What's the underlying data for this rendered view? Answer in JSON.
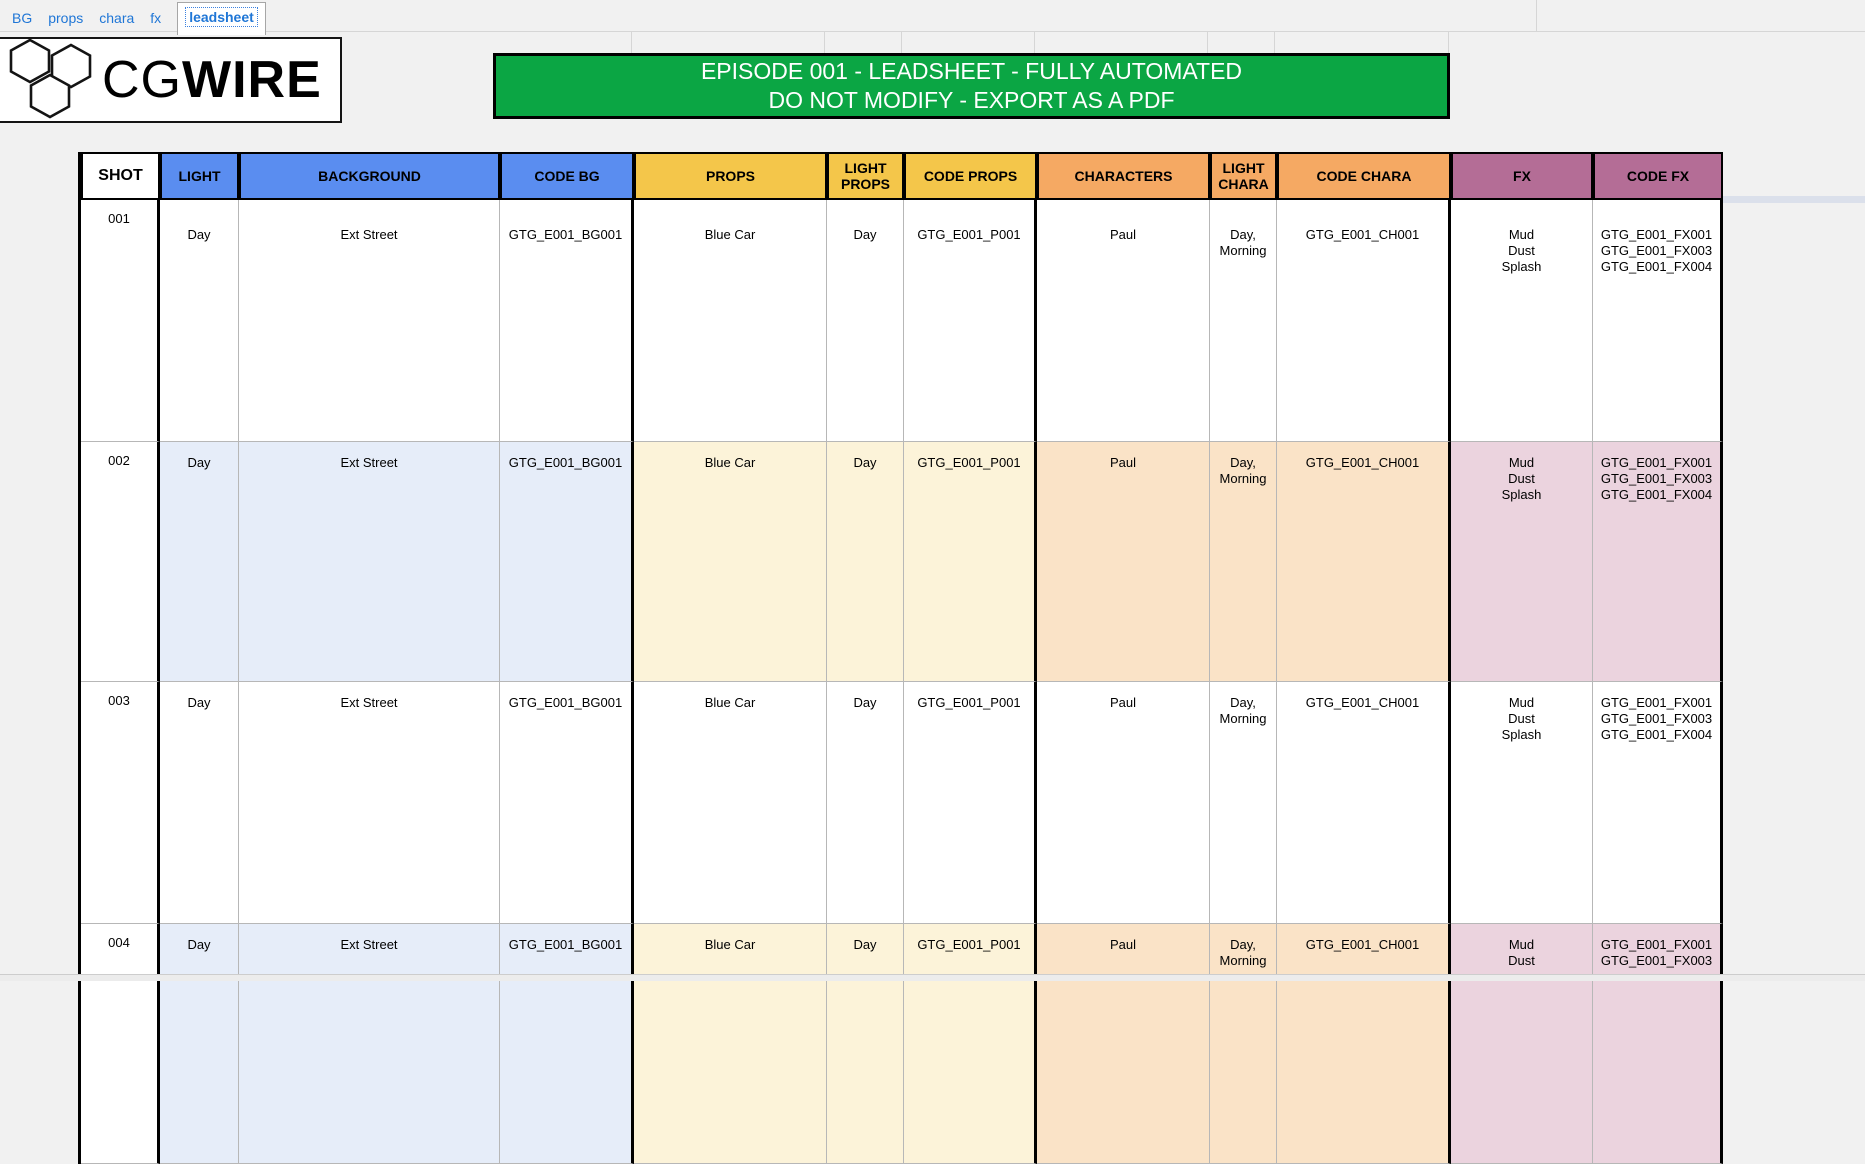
{
  "tabs": {
    "links": [
      "BG",
      "props",
      "chara",
      "fx"
    ],
    "active": "leadsheet"
  },
  "logo": {
    "cg": "CG",
    "wire": "WIRE"
  },
  "banner": {
    "line1": "EPISODE 001 - LEADSHEET - FULLY AUTOMATED",
    "line2": "DO NOT MODIFY - EXPORT AS A PDF"
  },
  "colors": {
    "link_blue": "#1f76d6",
    "banner_green": "#0ba644",
    "header": {
      "shot": "#ffffff",
      "bg": "#5a8df0",
      "props": "#f4c64a",
      "chara": "#f5a963",
      "fx": "#b46d96"
    },
    "shaded": {
      "shot": "#ffffff",
      "bg": "#e6edf9",
      "props": "#fcf3d9",
      "chara": "#fae3c7",
      "fx": "#ebd3de"
    }
  },
  "table": {
    "columns": [
      {
        "key": "shot",
        "label": "SHOT",
        "group": "shot"
      },
      {
        "key": "light",
        "label": "LIGHT",
        "group": "bg"
      },
      {
        "key": "background",
        "label": "BACKGROUND",
        "group": "bg"
      },
      {
        "key": "code_bg",
        "label": "CODE BG",
        "group": "bg"
      },
      {
        "key": "props",
        "label": "PROPS",
        "group": "props"
      },
      {
        "key": "light_props",
        "label": "LIGHT PROPS",
        "group": "props"
      },
      {
        "key": "code_props",
        "label": "CODE PROPS",
        "group": "props"
      },
      {
        "key": "characters",
        "label": "CHARACTERS",
        "group": "chara"
      },
      {
        "key": "light_chara",
        "label": "LIGHT CHARA",
        "group": "chara"
      },
      {
        "key": "code_chara",
        "label": "CODE CHARA",
        "group": "chara"
      },
      {
        "key": "fx",
        "label": "FX",
        "group": "fx"
      },
      {
        "key": "code_fx",
        "label": "CODE FX",
        "group": "fx"
      }
    ],
    "rows": [
      {
        "shot": "001",
        "light": "Day",
        "background": "Ext Street",
        "code_bg": "GTG_E001_BG001",
        "props": "Blue Car",
        "light_props": "Day",
        "code_props": "GTG_E001_P001",
        "characters": "Paul",
        "light_chara": "Day,\nMorning",
        "code_chara": "GTG_E001_CH001",
        "fx": "Mud\nDust\nSplash",
        "code_fx": "GTG_E001_FX001\nGTG_E001_FX003\nGTG_E001_FX004",
        "shaded": false
      },
      {
        "shot": "002",
        "light": "Day",
        "background": "Ext Street",
        "code_bg": "GTG_E001_BG001",
        "props": "Blue Car",
        "light_props": "Day",
        "code_props": "GTG_E001_P001",
        "characters": "Paul",
        "light_chara": "Day,\nMorning",
        "code_chara": "GTG_E001_CH001",
        "fx": "Mud\nDust\nSplash",
        "code_fx": "GTG_E001_FX001\nGTG_E001_FX003\nGTG_E001_FX004",
        "shaded": true
      },
      {
        "shot": "003",
        "light": "Day",
        "background": "Ext Street",
        "code_bg": "GTG_E001_BG001",
        "props": "Blue Car",
        "light_props": "Day",
        "code_props": "GTG_E001_P001",
        "characters": "Paul",
        "light_chara": "Day,\nMorning",
        "code_chara": "GTG_E001_CH001",
        "fx": "Mud\nDust\nSplash",
        "code_fx": "GTG_E001_FX001\nGTG_E001_FX003\nGTG_E001_FX004",
        "shaded": false
      },
      {
        "shot": "004",
        "light": "Day",
        "background": "Ext Street",
        "code_bg": "GTG_E001_BG001",
        "props": "Blue Car",
        "light_props": "Day",
        "code_props": "GTG_E001_P001",
        "characters": "Paul",
        "light_chara": "Day,\nMorning",
        "code_chara": "GTG_E001_CH001",
        "fx": "Mud\nDust",
        "code_fx": "GTG_E001_FX001\nGTG_E001_FX003",
        "shaded": true
      }
    ]
  }
}
